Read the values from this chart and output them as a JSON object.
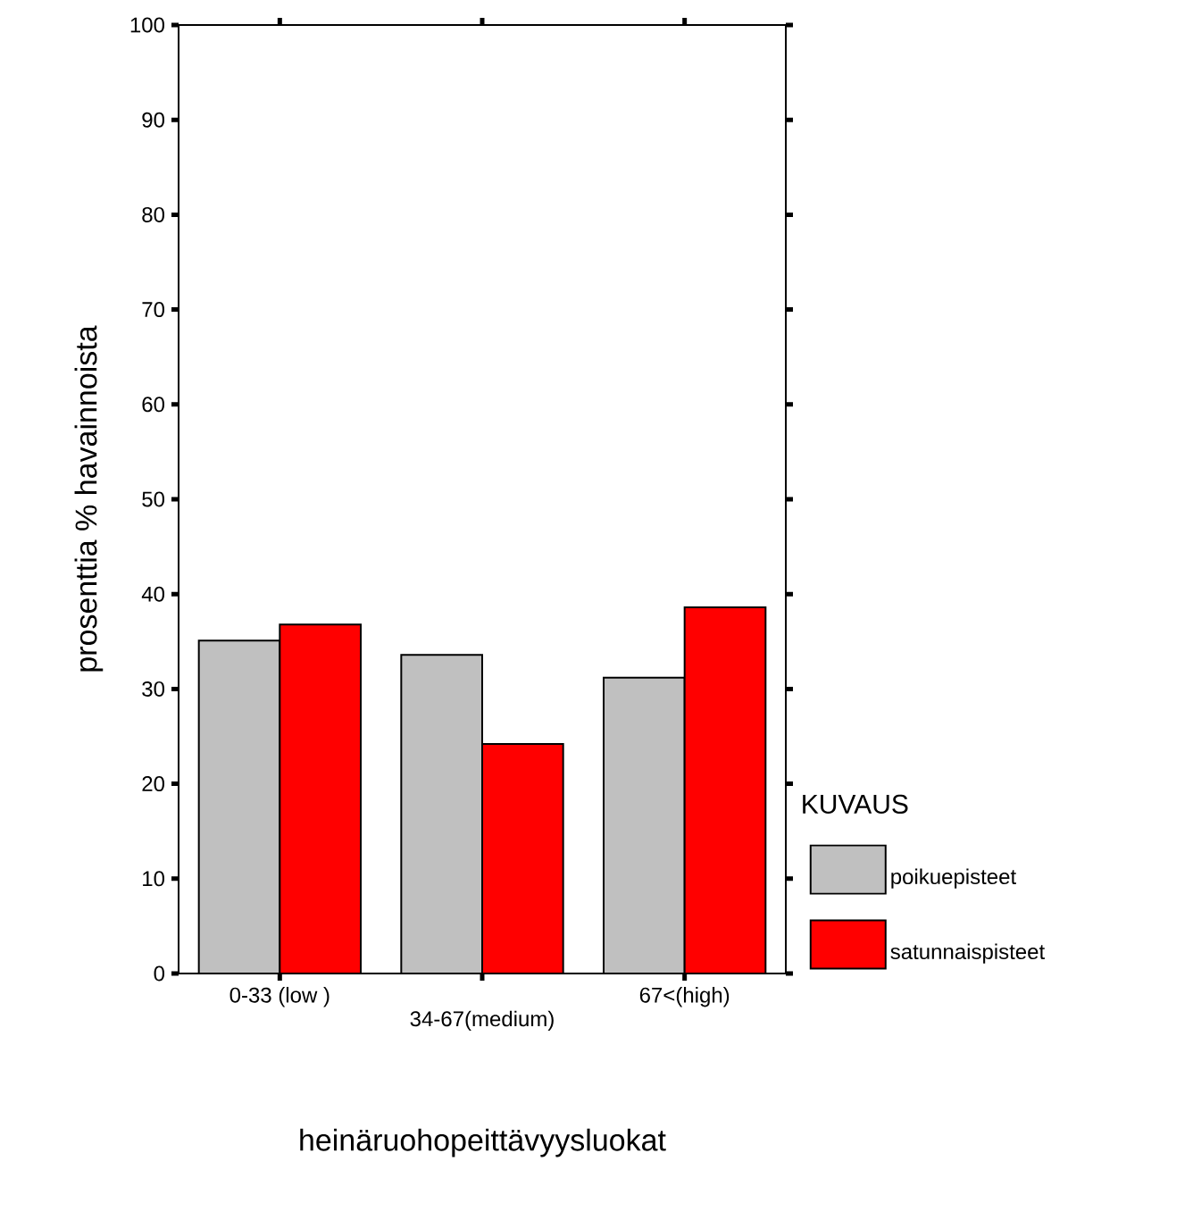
{
  "chart_data": {
    "type": "bar",
    "xlabel": "heinäruohopeittävyysluokat",
    "ylabel": "prosenttia % havainnoista",
    "legend_title": "KUVAUS",
    "categories": [
      "0-33 (low )",
      "34-67(medium)",
      "67<(high)"
    ],
    "series": [
      {
        "name": "poikuepisteet",
        "color": "#c0c0c0",
        "values": [
          35.1,
          33.6,
          31.2
        ]
      },
      {
        "name": "satunnaispisteet",
        "color": "#ff0000",
        "values": [
          36.8,
          24.2,
          38.6
        ]
      }
    ],
    "ylim": [
      0,
      100
    ],
    "yticks": [
      0,
      10,
      20,
      30,
      40,
      50,
      60,
      70,
      80,
      90,
      100
    ],
    "grid": false,
    "legend": "right"
  }
}
